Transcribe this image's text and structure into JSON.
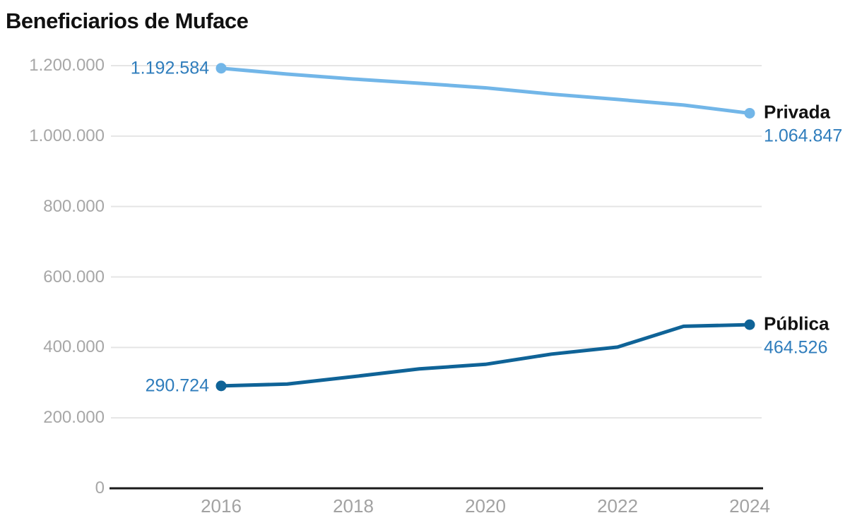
{
  "title": "Beneficiarios de Muface",
  "colors": {
    "privada_line": "#72b6e8",
    "publica_line": "#0f6397",
    "value_label": "#2f7dbc",
    "axis_label": "#a7a7a7",
    "gridline": "#e5e5e5",
    "baseline": "#1a1a1a",
    "series_name": "#111111",
    "background": "#ffffff"
  },
  "chart_data": {
    "type": "line",
    "title": "Beneficiarios de Muface",
    "x": [
      2016,
      2017,
      2018,
      2019,
      2020,
      2021,
      2022,
      2023,
      2024
    ],
    "series": [
      {
        "name": "Privada",
        "color": "#72b6e8",
        "values": [
          1192584,
          1176000,
          1162000,
          1150000,
          1137000,
          1119000,
          1104000,
          1088000,
          1064847
        ],
        "start_label": "1.192.584",
        "end_label": "1.064.847"
      },
      {
        "name": "Pública",
        "color": "#0f6397",
        "values": [
          290724,
          296000,
          317000,
          339000,
          352000,
          381000,
          401000,
          460000,
          464526
        ],
        "start_label": "290.724",
        "end_label": "464.526"
      }
    ],
    "yticks": [
      {
        "value": 0,
        "label": "0"
      },
      {
        "value": 200000,
        "label": "200.000"
      },
      {
        "value": 400000,
        "label": "400.000"
      },
      {
        "value": 600000,
        "label": "600.000"
      },
      {
        "value": 800000,
        "label": "800.000"
      },
      {
        "value": 1000000,
        "label": "1.000.000"
      },
      {
        "value": 1200000,
        "label": "1.200.000"
      }
    ],
    "xticks": [
      {
        "value": 2016,
        "label": "2016"
      },
      {
        "value": 2018,
        "label": "2018"
      },
      {
        "value": 2020,
        "label": "2020"
      },
      {
        "value": 2022,
        "label": "2022"
      },
      {
        "value": 2024,
        "label": "2024"
      }
    ],
    "ylim": [
      0,
      1240000
    ],
    "xlim": [
      2016,
      2024
    ],
    "grid": "horizontal",
    "legend_position": "direct-labels-right",
    "markers": "endpoints-only"
  }
}
